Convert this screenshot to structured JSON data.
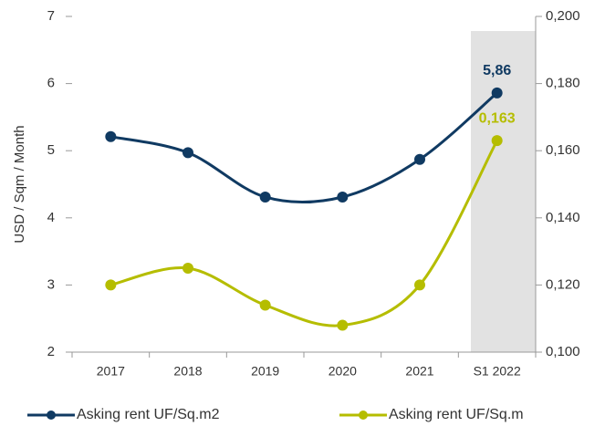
{
  "chart_data": {
    "type": "line",
    "categories": [
      "2017",
      "2018",
      "2019",
      "2020",
      "2021",
      "S1 2022"
    ],
    "ylabel": "USD / Sqm / Month",
    "ylim": [
      2,
      7
    ],
    "yticks": [
      2,
      3,
      4,
      5,
      6,
      7
    ],
    "y2lim": [
      0.1,
      0.2
    ],
    "y2ticks": [
      {
        "value": 0.1,
        "label": "0,100"
      },
      {
        "value": 0.12,
        "label": "0,120"
      },
      {
        "value": 0.14,
        "label": "0,140"
      },
      {
        "value": 0.16,
        "label": "0,160"
      },
      {
        "value": 0.18,
        "label": "0,180"
      },
      {
        "value": 0.2,
        "label": "0,200"
      }
    ],
    "legend": "bottom",
    "series": [
      {
        "name": "Asking rent UF/Sq.m2",
        "color": "#103a62",
        "values": [
          5.21,
          4.97,
          4.31,
          4.31,
          4.87,
          5.86
        ],
        "value_labels": [
          null,
          null,
          null,
          null,
          null,
          "5,86"
        ]
      },
      {
        "name": "Asking rent UF/Sq.m",
        "color": "#b5bd00",
        "axis": "y2",
        "values": [
          0.12,
          0.125,
          0.114,
          0.108,
          0.12,
          0.163
        ],
        "value_labels": [
          null,
          null,
          null,
          null,
          null,
          "0,163"
        ]
      }
    ]
  }
}
